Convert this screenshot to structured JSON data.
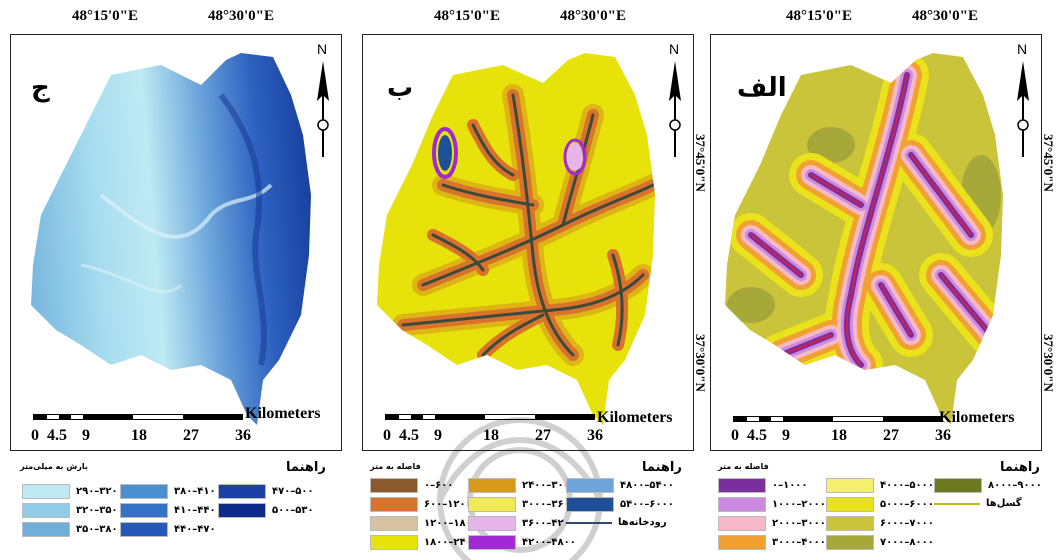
{
  "top_coords": [
    "48°15'0\"E",
    "48°30'0\"E"
  ],
  "side_coords": [
    "37°45'0\"N",
    "37°30'0\"N"
  ],
  "north_label": "N",
  "scale": {
    "unit": "Kilometers",
    "ticks": [
      "0",
      "4.5",
      "9",
      "18",
      "27",
      "36"
    ]
  },
  "panels": {
    "jim": {
      "letter": "ج",
      "legend_title": "راهنما",
      "legend_subtitle": "بارش به میلی‌متر",
      "items": [
        {
          "label": "۲۹۰–۳۲۰",
          "color": "#bfeaf3"
        },
        {
          "label": "۳۲۰–۳۵۰",
          "color": "#92cde8"
        },
        {
          "label": "۳۵۰–۳۸۰",
          "color": "#6fb0db"
        },
        {
          "label": "۳۸۰–۴۱۰",
          "color": "#4b8fd0"
        },
        {
          "label": "۴۱۰–۴۴۰",
          "color": "#3572c6"
        },
        {
          "label": "۴۴۰–۴۷۰",
          "color": "#2457b8"
        },
        {
          "label": "۴۷۰–۵۰۰",
          "color": "#1a3fa6"
        },
        {
          "label": "۵۰۰–۵۳۰",
          "color": "#0d2a8a"
        }
      ]
    },
    "be": {
      "letter": "ب",
      "legend_title": "راهنما",
      "legend_subtitle": "فاصله به متر",
      "items": [
        {
          "label": "۰–۶۰۰",
          "color": "#8b5a2b"
        },
        {
          "label": "۶۰۰–۱۲۰۰",
          "color": "#d9732c"
        },
        {
          "label": "۱۲۰۰–۱۸۰۰",
          "color": "#d8c2a4"
        },
        {
          "label": "۱۸۰۰–۲۴۰۰",
          "color": "#e6e20a"
        },
        {
          "label": "۲۴۰۰–۳۰۰۰",
          "color": "#d89a1d"
        },
        {
          "label": "۳۰۰۰–۳۶۰۰",
          "color": "#f2ea52"
        },
        {
          "label": "۳۶۰۰–۴۲۰۰",
          "color": "#e8b5ea"
        },
        {
          "label": "۴۲۰۰–۴۸۰۰",
          "color": "#a12ad6"
        },
        {
          "label": "۴۸۰۰–۵۴۰۰",
          "color": "#6fa6d9"
        },
        {
          "label": "۵۴۰۰–۶۰۰۰",
          "color": "#1f4f96"
        },
        {
          "label": "رودخانه‌ها",
          "color": "#2f4a6e",
          "line": true
        }
      ]
    },
    "alef": {
      "letter": "الف",
      "legend_title": "راهنما",
      "legend_subtitle": "فاصله به متر",
      "items": [
        {
          "label": "۰–۱۰۰۰",
          "color": "#7b2f9e"
        },
        {
          "label": "۱۰۰۰–۲۰۰۰",
          "color": "#cc8ae0"
        },
        {
          "label": "۲۰۰۰–۳۰۰۰",
          "color": "#f7b9c9"
        },
        {
          "label": "۳۰۰۰–۴۰۰۰",
          "color": "#f0a132"
        },
        {
          "label": "۴۰۰۰–۵۰۰۰",
          "color": "#f6f070"
        },
        {
          "label": "۵۰۰۰–۶۰۰۰",
          "color": "#eae21a"
        },
        {
          "label": "۶۰۰۰–۷۰۰۰",
          "color": "#c9c43a"
        },
        {
          "label": "۷۰۰۰–۸۰۰۰",
          "color": "#a6a93a"
        },
        {
          "label": "۸۰۰۰–۹۰۰۰",
          "color": "#6d7a22"
        },
        {
          "label": "گسل‌ها",
          "color": "#c8b81a",
          "line": true
        }
      ]
    }
  }
}
